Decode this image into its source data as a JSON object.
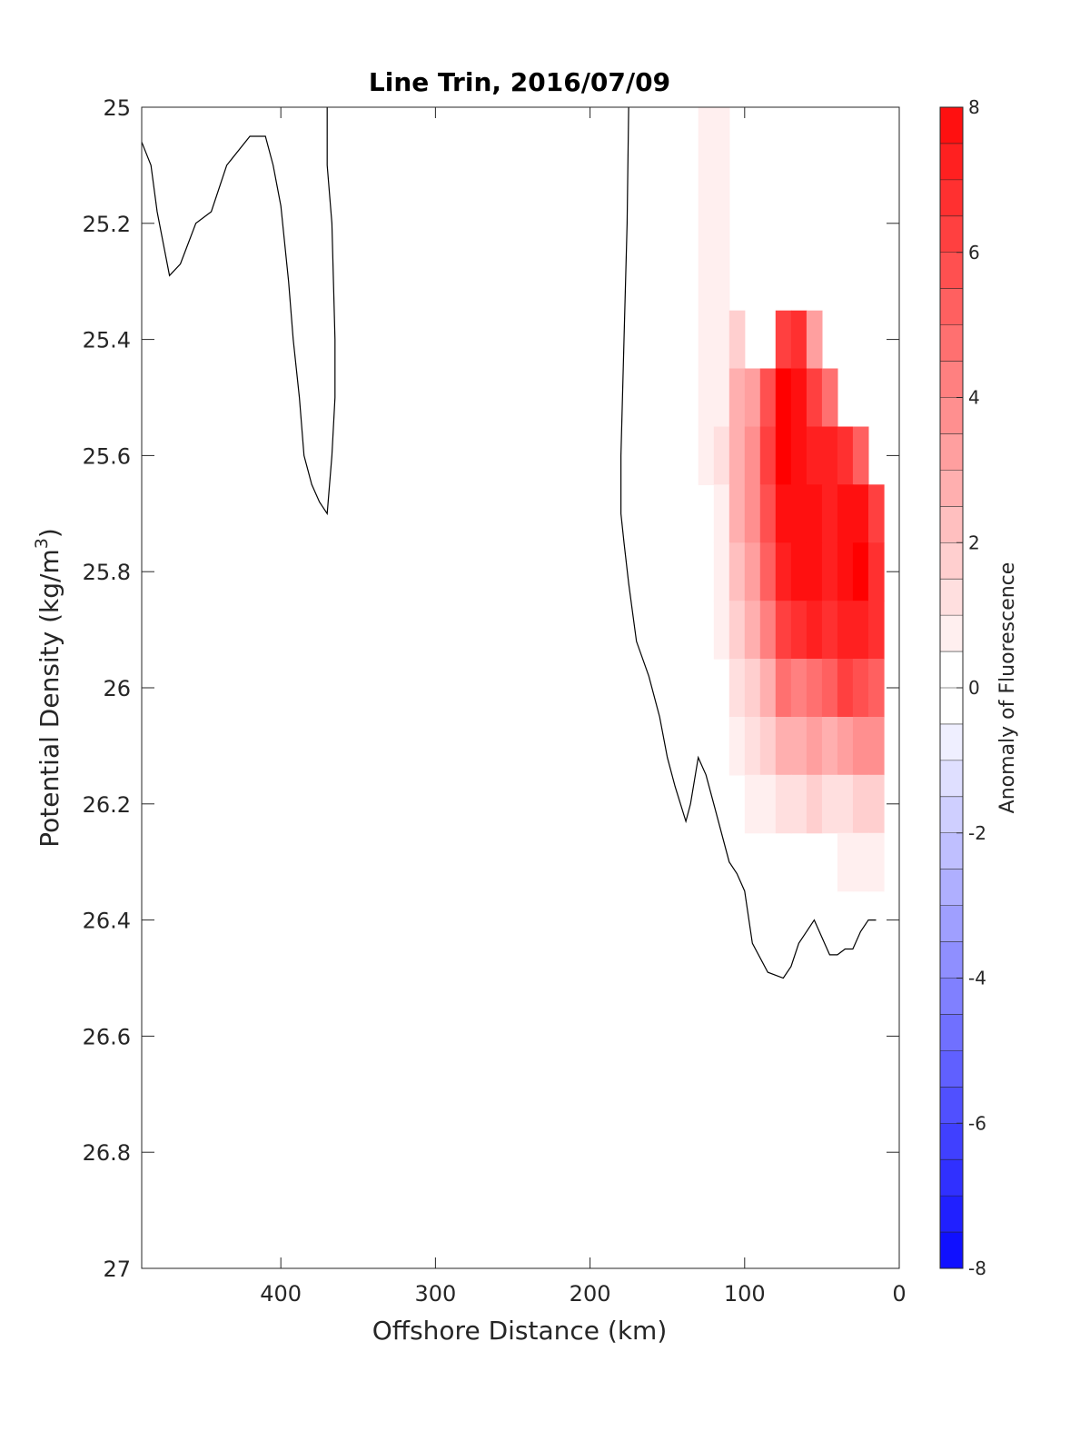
{
  "chart_data": {
    "type": "contourf",
    "title": "Line Trin, 2016/07/09",
    "xlabel": "Offshore Distance (km)",
    "ylabel_main": "Potential Density (kg/m",
    "ylabel_sup": "3",
    "ylabel_close": ")",
    "xlim": [
      490,
      0
    ],
    "ylim": [
      25,
      27
    ],
    "x_reversed": true,
    "y_reversed": true,
    "xticks": [
      400,
      300,
      200,
      100,
      0
    ],
    "yticks": [
      25,
      25.2,
      25.4,
      25.6,
      25.8,
      26,
      26.2,
      26.4,
      26.6,
      26.8,
      27
    ],
    "xtick_labels": [
      "400",
      "300",
      "200",
      "100",
      "0"
    ],
    "ytick_labels": [
      "25",
      "25.2",
      "25.4",
      "25.6",
      "25.8",
      "26",
      "26.2",
      "26.4",
      "26.6",
      "26.8",
      "27"
    ],
    "grid": false,
    "colorbar": {
      "label": "Anomaly of Fluorescence",
      "clim": [
        -8,
        8
      ],
      "ticks": [
        -8,
        -6,
        -4,
        -2,
        0,
        2,
        4,
        6,
        8
      ],
      "tick_labels": [
        "-8",
        "-6",
        "-4",
        "-2",
        "0",
        "2",
        "4",
        "6",
        "8"
      ],
      "level_step": 0.5,
      "neg_color": "#0000ff",
      "pos_color": "#ff0000",
      "zero_color": "#ffffff"
    },
    "contour_line_color": "#000000",
    "contour_lines": [
      {
        "name": "zero-contour-offshore",
        "x": [
          490,
          484,
          480,
          472,
          465,
          455,
          445,
          435,
          420,
          410,
          405,
          400,
          395,
          392,
          388,
          385,
          380,
          375,
          370,
          367,
          365,
          365,
          366,
          367,
          370,
          370
        ],
        "y": [
          25.06,
          25.1,
          25.18,
          25.29,
          25.27,
          25.2,
          25.18,
          25.1,
          25.05,
          25.05,
          25.1,
          25.17,
          25.3,
          25.4,
          25.5,
          25.6,
          25.65,
          25.68,
          25.7,
          25.6,
          25.5,
          25.4,
          25.3,
          25.2,
          25.1,
          25.0
        ]
      },
      {
        "name": "zero-contour-nearshore",
        "x": [
          175,
          176,
          178,
          180,
          180,
          178,
          175,
          170,
          162,
          155,
          150,
          145,
          138,
          135,
          130,
          125,
          120,
          115,
          110,
          105,
          100,
          95,
          85,
          75,
          70,
          65,
          60,
          55,
          50,
          45,
          40,
          35,
          30,
          25,
          20,
          15
        ],
        "y": [
          25.0,
          25.2,
          25.4,
          25.6,
          25.7,
          25.75,
          25.82,
          25.92,
          25.98,
          26.05,
          26.12,
          26.17,
          26.23,
          26.2,
          26.12,
          26.15,
          26.2,
          26.25,
          26.3,
          26.32,
          26.35,
          26.44,
          26.49,
          26.5,
          26.48,
          26.44,
          26.42,
          26.4,
          26.43,
          26.46,
          26.46,
          26.45,
          26.45,
          26.42,
          26.4,
          26.4
        ]
      }
    ],
    "anomaly_field": {
      "x": [
        135,
        125,
        115,
        105,
        95,
        85,
        75,
        65,
        55,
        45,
        35,
        25,
        15
      ],
      "y": [
        25.0,
        25.1,
        25.2,
        25.3,
        25.4,
        25.5,
        25.6,
        25.7,
        25.8,
        25.9,
        26.0,
        26.1,
        26.2,
        26.3
      ],
      "z": [
        [
          0.4,
          0.6,
          0.9,
          null,
          null,
          null,
          null,
          null,
          null,
          null,
          null,
          null,
          null
        ],
        [
          0.3,
          0.6,
          0.9,
          null,
          null,
          null,
          null,
          null,
          null,
          null,
          null,
          null,
          null
        ],
        [
          0.3,
          0.5,
          0.8,
          null,
          null,
          null,
          null,
          null,
          null,
          null,
          null,
          null,
          null
        ],
        [
          0.2,
          0.5,
          0.8,
          null,
          null,
          null,
          null,
          null,
          null,
          null,
          null,
          null,
          null
        ],
        [
          0.2,
          0.5,
          0.8,
          1.8,
          null,
          null,
          6.0,
          6.5,
          3.0,
          null,
          null,
          null,
          null
        ],
        [
          0.2,
          0.5,
          0.9,
          2.5,
          3.0,
          5.5,
          8.0,
          7.5,
          6.0,
          4.5,
          null,
          null,
          null
        ],
        [
          0.2,
          0.5,
          1.0,
          2.5,
          3.5,
          6.0,
          8.0,
          7.5,
          7.0,
          7.0,
          6.5,
          5.0,
          null
        ],
        [
          0.1,
          0.4,
          0.9,
          2.5,
          3.5,
          5.5,
          7.5,
          7.5,
          7.5,
          7.0,
          7.5,
          7.5,
          6.0
        ],
        [
          0.1,
          0.3,
          0.8,
          2.0,
          3.0,
          5.0,
          7.0,
          7.5,
          7.5,
          7.0,
          7.5,
          8.0,
          6.5
        ],
        [
          0.0,
          0.2,
          0.6,
          1.6,
          2.5,
          4.0,
          6.0,
          6.5,
          7.0,
          6.5,
          7.0,
          7.0,
          6.5
        ],
        [
          0.0,
          0.1,
          0.4,
          1.1,
          1.6,
          2.5,
          4.5,
          4.0,
          4.5,
          5.0,
          6.0,
          5.5,
          5.0
        ],
        [
          0.0,
          0.0,
          0.2,
          0.6,
          1.0,
          1.5,
          2.5,
          2.5,
          3.0,
          2.5,
          3.0,
          3.5,
          3.5
        ],
        [
          0.0,
          0.0,
          0.0,
          0.2,
          0.5,
          0.7,
          1.0,
          1.0,
          1.5,
          1.0,
          1.2,
          1.5,
          1.5
        ],
        [
          0.0,
          0.0,
          0.0,
          0.0,
          0.0,
          0.0,
          0.2,
          0.0,
          0.2,
          0.4,
          0.5,
          0.5,
          0.6
        ]
      ]
    }
  }
}
